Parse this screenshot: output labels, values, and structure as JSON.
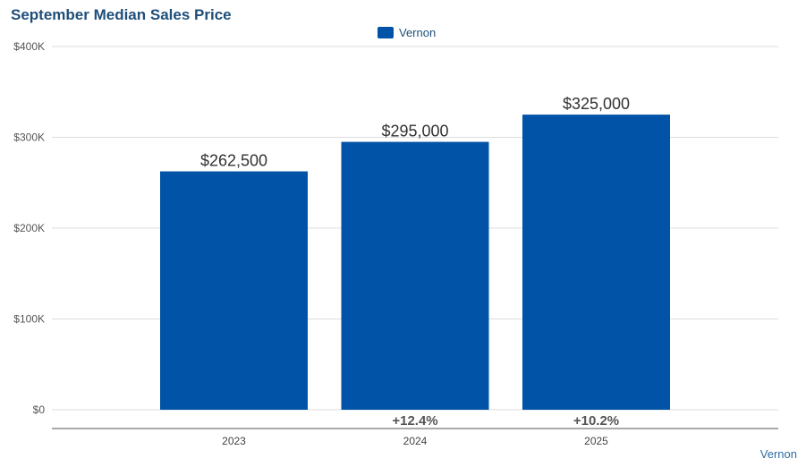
{
  "chart_data": {
    "type": "bar",
    "title": "September Median Sales Price",
    "categories": [
      "2023",
      "2024",
      "2025"
    ],
    "series": [
      {
        "name": "Vernon",
        "values": [
          262500,
          295000,
          325000
        ],
        "color": "#0053a6"
      }
    ],
    "value_labels": [
      "$262,500",
      "$295,000",
      "$325,000"
    ],
    "change_labels": [
      "",
      "+12.4%",
      "+10.2%"
    ],
    "yticks": [
      {
        "value": 0,
        "label": "$0"
      },
      {
        "value": 100000,
        "label": "$100K"
      },
      {
        "value": 200000,
        "label": "$200K"
      },
      {
        "value": 300000,
        "label": "$300K"
      },
      {
        "value": 400000,
        "label": "$400K"
      }
    ],
    "ylim": [
      0,
      400000
    ],
    "grid": true,
    "legend_position": "top-center"
  },
  "footer": {
    "label": "Vernon"
  }
}
